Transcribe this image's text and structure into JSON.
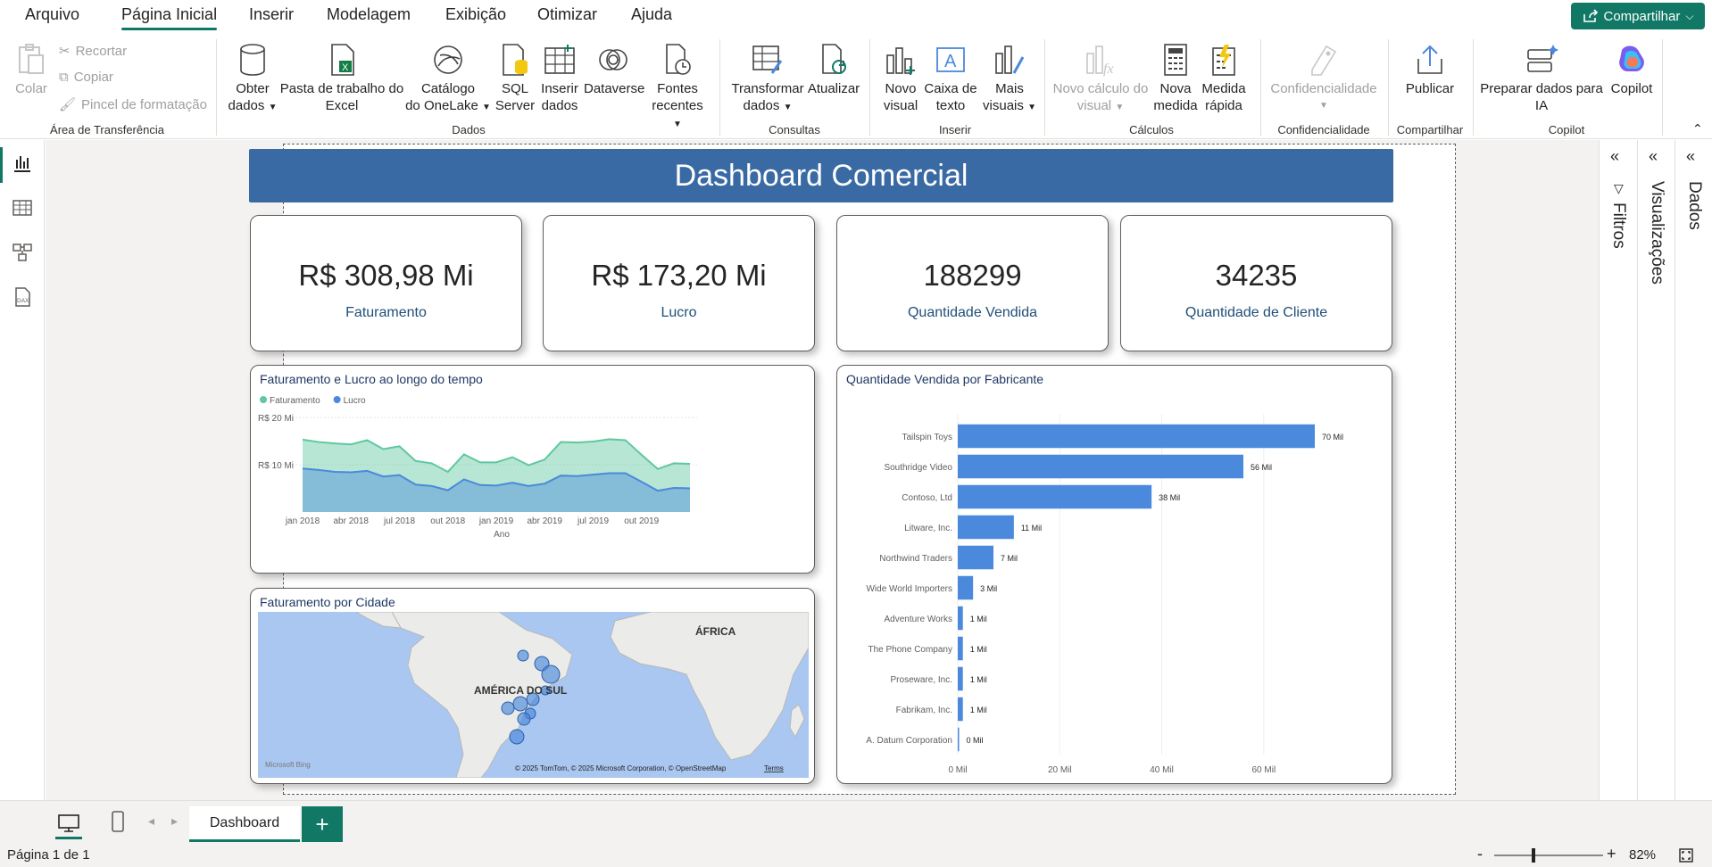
{
  "menu": {
    "items": [
      "Arquivo",
      "Página Inicial",
      "Inserir",
      "Modelagem",
      "Exibição",
      "Otimizar",
      "Ajuda"
    ],
    "share_label": "Compartilhar"
  },
  "ribbon": {
    "clipboard": {
      "paste": "Colar",
      "cut": "Recortar",
      "copy": "Copiar",
      "format_painter": "Pincel de formatação",
      "group": "Área de Transferência"
    },
    "data": {
      "get_data_1": "Obter",
      "get_data_2": "dados",
      "excel_1": "Pasta de trabalho do",
      "excel_2": "Excel",
      "onelake_1": "Catálogo",
      "onelake_2": "do OneLake",
      "sql_1": "SQL",
      "sql_2": "Server",
      "enter_1": "Inserir",
      "enter_2": "dados",
      "dataverse": "Dataverse",
      "recent_1": "Fontes",
      "recent_2": "recentes",
      "group": "Dados"
    },
    "queries": {
      "transform_1": "Transformar",
      "transform_2": "dados",
      "refresh": "Atualizar",
      "group": "Consultas"
    },
    "insert": {
      "visual_1": "Novo",
      "visual_2": "visual",
      "textbox_1": "Caixa de",
      "textbox_2": "texto",
      "more_1": "Mais",
      "more_2": "visuais",
      "group": "Inserir"
    },
    "calc": {
      "visualcalc_1": "Novo cálculo do",
      "visualcalc_2": "visual",
      "measure_1": "Nova",
      "measure_2": "medida",
      "quick_1": "Medida",
      "quick_2": "rápida",
      "group": "Cálculos"
    },
    "sensitivity": {
      "label": "Confidencialidade",
      "group": "Confidencialidade"
    },
    "share": {
      "publish": "Publicar",
      "group": "Compartilhar"
    },
    "copilot": {
      "prepare_1": "Preparar dados para",
      "prepare_2": "IA",
      "copilot": "Copilot",
      "group": "Copilot"
    }
  },
  "dashboard": {
    "title": "Dashboard Comercial",
    "kpis": [
      {
        "value": "R$ 308,98 Mi",
        "label": "Faturamento"
      },
      {
        "value": "R$ 173,20 Mi",
        "label": "Lucro"
      },
      {
        "value": "188299",
        "label": "Quantidade Vendida"
      },
      {
        "value": "34235",
        "label": "Quantidade de Cliente"
      }
    ],
    "map": {
      "title": "Faturamento por Cidade",
      "label_africa": "ÁFRICA",
      "label_sa": "AMÉRICA DO SUL",
      "bing": "Microsoft Bing",
      "copyright": "© 2025 TomTom, © 2025 Microsoft Corporation, © OpenStreetMap",
      "terms": "Terms"
    }
  },
  "chart_data": [
    {
      "type": "area",
      "title": "Faturamento e Lucro ao longo do tempo",
      "xlabel": "Ano",
      "ylabel": "",
      "ylim": [
        0,
        20
      ],
      "y_ticks": [
        "R$ 10 Mi",
        "R$ 20 Mi"
      ],
      "x_ticks": [
        "jan 2018",
        "abr 2018",
        "jul 2018",
        "out 2018",
        "jan 2019",
        "abr 2019",
        "jul 2019",
        "out 2019"
      ],
      "x_months": 24,
      "legend_position": "top-left",
      "series": [
        {
          "name": "Faturamento",
          "color": "#5fc8a0",
          "values": [
            15.3,
            14.8,
            14.5,
            14.3,
            15.2,
            13.3,
            13.9,
            10.8,
            10.3,
            8.5,
            12.2,
            10.5,
            10.5,
            11.6,
            9.9,
            11.1,
            14.8,
            14.7,
            14.9,
            15.4,
            15.2,
            12.1,
            9.1,
            10.3,
            10.2
          ]
        },
        {
          "name": "Lucro",
          "color": "#4a89dc",
          "values": [
            9.2,
            8.9,
            8.5,
            8.4,
            8.7,
            7.5,
            7.8,
            5.8,
            5.5,
            4.6,
            6.9,
            5.7,
            5.6,
            6.2,
            5.5,
            6.0,
            7.7,
            7.6,
            7.9,
            8.2,
            8.2,
            6.4,
            4.5,
            5.1,
            5.0
          ]
        }
      ]
    },
    {
      "type": "bar",
      "orientation": "horizontal",
      "title": "Quantidade Vendida por Fabricante",
      "categories": [
        "Tailspin Toys",
        "Southridge Video",
        "Contoso, Ltd",
        "Litware, Inc.",
        "Northwind Traders",
        "Wide World Importers",
        "Adventure Works",
        "The Phone Company",
        "Proseware, Inc.",
        "Fabrikam, Inc.",
        "A. Datum Corporation"
      ],
      "values": [
        70,
        56,
        38,
        11,
        7,
        3,
        1,
        1,
        1,
        1,
        0
      ],
      "data_labels": [
        "70 Mil",
        "56 Mil",
        "38 Mil",
        "11 Mil",
        "7 Mil",
        "3 Mil",
        "1 Mil",
        "1 Mil",
        "1 Mil",
        "1 Mil",
        "0 Mil"
      ],
      "x_ticks": [
        "0 Mil",
        "20 Mil",
        "40 Mil",
        "60 Mil"
      ],
      "xlim": [
        0,
        70
      ],
      "color": "#4a89dc"
    }
  ],
  "panes": {
    "filters": "Filtros",
    "visualizations": "Visualizações",
    "data": "Dados"
  },
  "tabs": {
    "page": "Dashboard"
  },
  "status": {
    "page_info": "Página 1 de 1",
    "zoom": "82%"
  }
}
